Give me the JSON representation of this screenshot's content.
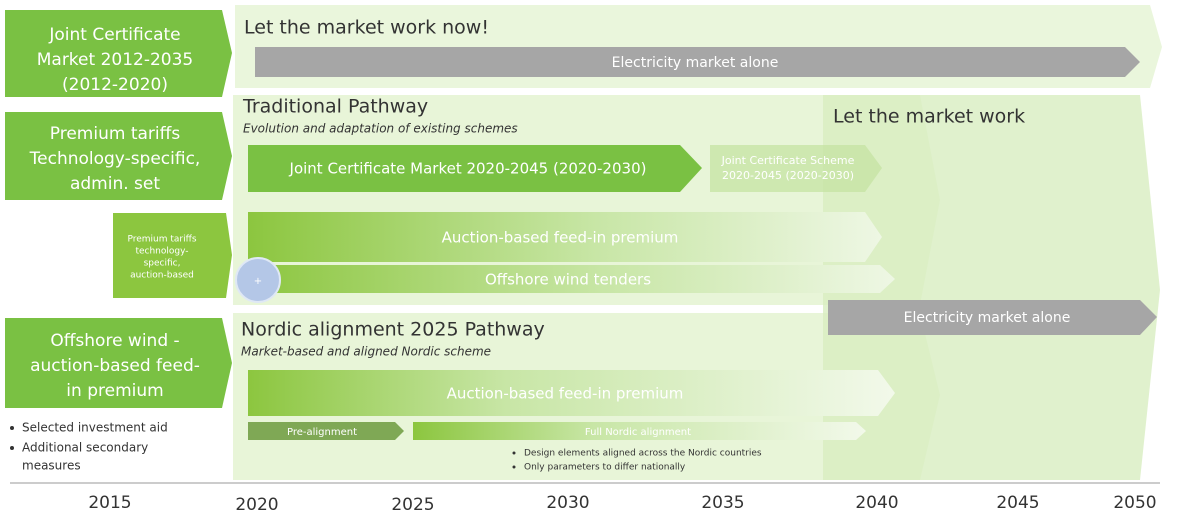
{
  "left_boxes": [
    {
      "lines": [
        "Joint Certificate",
        "Market 2012-2035",
        "(2012-2020)"
      ]
    },
    {
      "lines": [
        "Premium tariffs",
        "Technology-specific,",
        "admin. set"
      ]
    },
    {
      "lines": [
        "Premium tariffs",
        "technology-",
        "specific,",
        "auction-based"
      ]
    },
    {
      "lines": [
        "Offshore wind  -",
        "auction-based feed-",
        "in premium"
      ]
    }
  ],
  "left_bullets": [
    {
      "lines": [
        "Selected investment aid"
      ]
    },
    {
      "lines": [
        "Additional secondary",
        "measures"
      ]
    }
  ],
  "top_band": {
    "title": "Let the market work now!",
    "arrow": "Electricity market alone"
  },
  "traditional": {
    "title": "Traditional Pathway",
    "subtitle": "Evolution and adaptation of existing schemes",
    "arrows": [
      "Joint Certificate Market 2020-2045 (2020-2030)",
      "Auction-based feed-in premium",
      "Offshore wind  tenders"
    ],
    "faded_lines": [
      "Joint Certificate Scheme",
      "2020-2045 (2020-2030)"
    ],
    "circle": "+"
  },
  "right_band": {
    "title": "Let the market work",
    "arrow": "Electricity market alone"
  },
  "nordic": {
    "title": "Nordic alignment 2025 Pathway",
    "subtitle": "Market-based and aligned Nordic scheme",
    "arrow": "Auction-based feed-in premium",
    "pre": "Pre-alignment",
    "full": "Full Nordic alignment",
    "bullets": [
      "Design elements aligned across the Nordic countries",
      "Only parameters to differ nationally"
    ]
  },
  "axis": {
    "years": [
      "2015",
      "2020",
      "2025",
      "2030",
      "2035",
      "2040",
      "2045",
      "2050"
    ]
  }
}
